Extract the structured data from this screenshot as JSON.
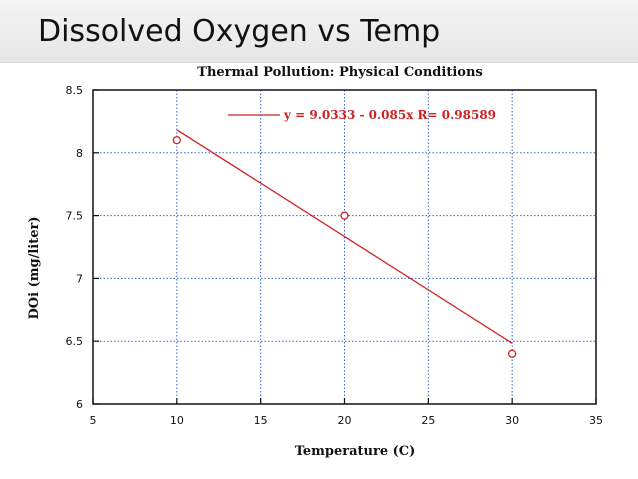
{
  "slide": {
    "title": "Dissolved Oxygen vs Temp"
  },
  "chart_data": {
    "type": "scatter",
    "title": "Thermal Pollution: Physical Conditions",
    "xlabel": "Temperature (C)",
    "ylabel": "DOi (mg/liter)",
    "xlim": [
      5,
      35
    ],
    "ylim": [
      6,
      8.5
    ],
    "x_ticks": [
      5,
      10,
      15,
      20,
      25,
      30,
      35
    ],
    "y_ticks": [
      6,
      6.5,
      7,
      7.5,
      8,
      8.5
    ],
    "x_tick_labels": [
      "5",
      "10",
      "15",
      "20",
      "25",
      "30",
      "35"
    ],
    "y_tick_labels": [
      "6",
      "6.5",
      "7",
      "7.5",
      "8",
      "8.5"
    ],
    "grid": true,
    "legend_position": "top-right",
    "series": [
      {
        "name": "DOi",
        "x": [
          10,
          20,
          30
        ],
        "y": [
          8.1,
          7.5,
          6.4
        ],
        "color": "#cc2222",
        "marker": "circle-open"
      }
    ],
    "fit": {
      "label": "y = 9.0333 - 0.085x R= 0.98589",
      "x_range": [
        10,
        30
      ],
      "intercept": 9.0333,
      "slope": -0.085,
      "color": "#cc2222"
    },
    "colors": {
      "axis": "#111111",
      "grid": "#3366cc"
    }
  }
}
